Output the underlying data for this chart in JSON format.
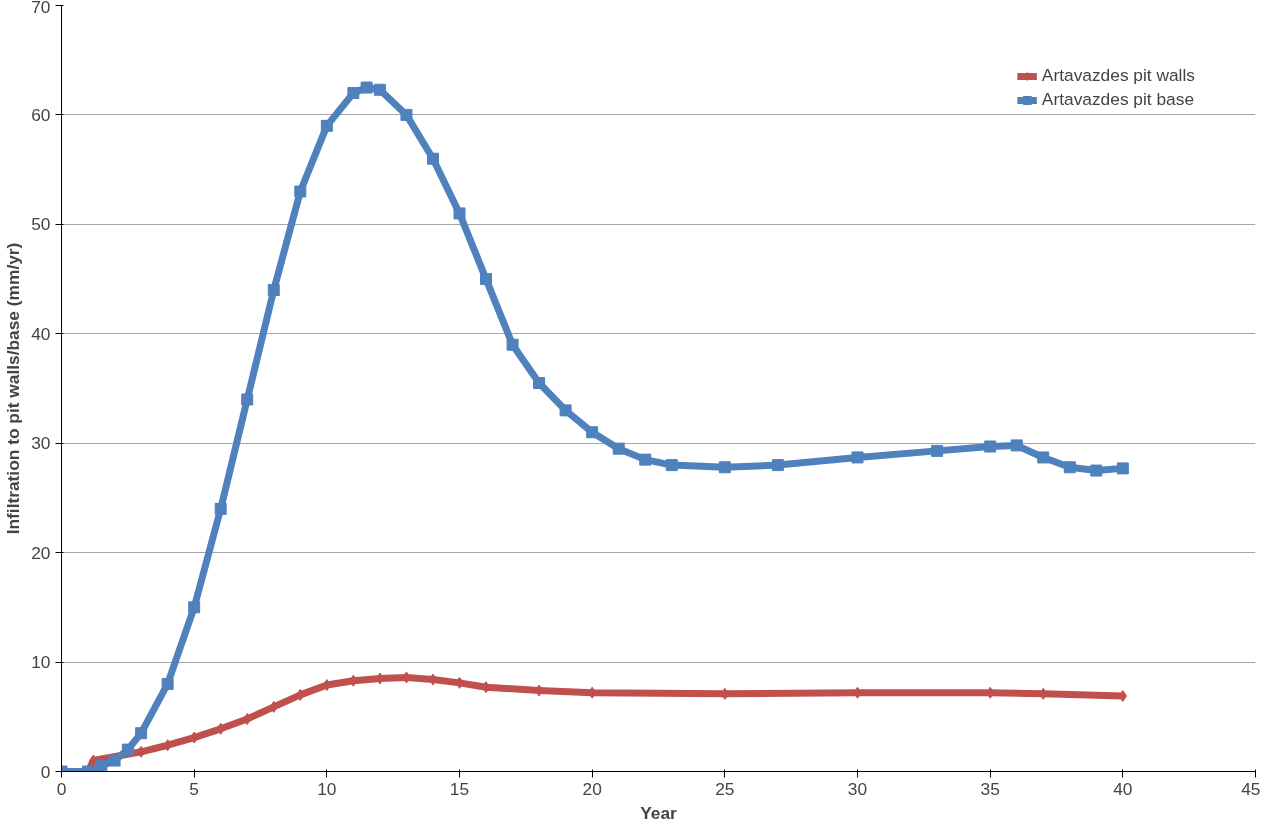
{
  "chart_data": {
    "type": "line",
    "xlabel": "Year",
    "ylabel": "Infiltration to pit walls/base (mm/yr)",
    "xlim": [
      0,
      45
    ],
    "ylim": [
      0,
      70
    ],
    "xticks": [
      0,
      5,
      10,
      15,
      20,
      25,
      30,
      35,
      40,
      45
    ],
    "yticks": [
      0,
      10,
      20,
      30,
      40,
      50,
      60,
      70
    ],
    "grid": "y",
    "legend": "top right",
    "series": [
      {
        "name": "Artavazdes pit walls",
        "color": "#c0504d",
        "marker": "diamond",
        "x": [
          0,
          1,
          1.2,
          3,
          4,
          5,
          6,
          7,
          8,
          9,
          10,
          11,
          12,
          13,
          14,
          15,
          16,
          18,
          20,
          25,
          30,
          35,
          37,
          40
        ],
        "values": [
          0,
          0,
          1,
          1.8,
          2.4,
          3.1,
          3.9,
          4.8,
          5.9,
          7,
          7.9,
          8.3,
          8.5,
          8.6,
          8.4,
          8.1,
          7.7,
          7.4,
          7.2,
          7.1,
          7.2,
          7.2,
          7.1,
          6.9
        ]
      },
      {
        "name": "Artavazdes pit base",
        "color": "#4f81bd",
        "marker": "square",
        "x": [
          0,
          1,
          1.5,
          2,
          2.5,
          3,
          4,
          5,
          6,
          7,
          8,
          9,
          10,
          11,
          11.5,
          12,
          13,
          14,
          15,
          16,
          17,
          18,
          19,
          20,
          21,
          22,
          23,
          25,
          27,
          30,
          33,
          35,
          36,
          37,
          38,
          39,
          40
        ],
        "values": [
          0,
          0,
          0.5,
          1,
          2,
          3.5,
          8,
          15,
          24,
          34,
          44,
          53,
          59,
          62,
          62.5,
          62.3,
          60,
          56,
          51,
          45,
          39,
          35.5,
          33,
          31,
          29.5,
          28.5,
          28,
          27.8,
          28,
          28.7,
          29.3,
          29.7,
          29.8,
          28.7,
          27.8,
          27.5,
          27.7
        ]
      }
    ]
  }
}
